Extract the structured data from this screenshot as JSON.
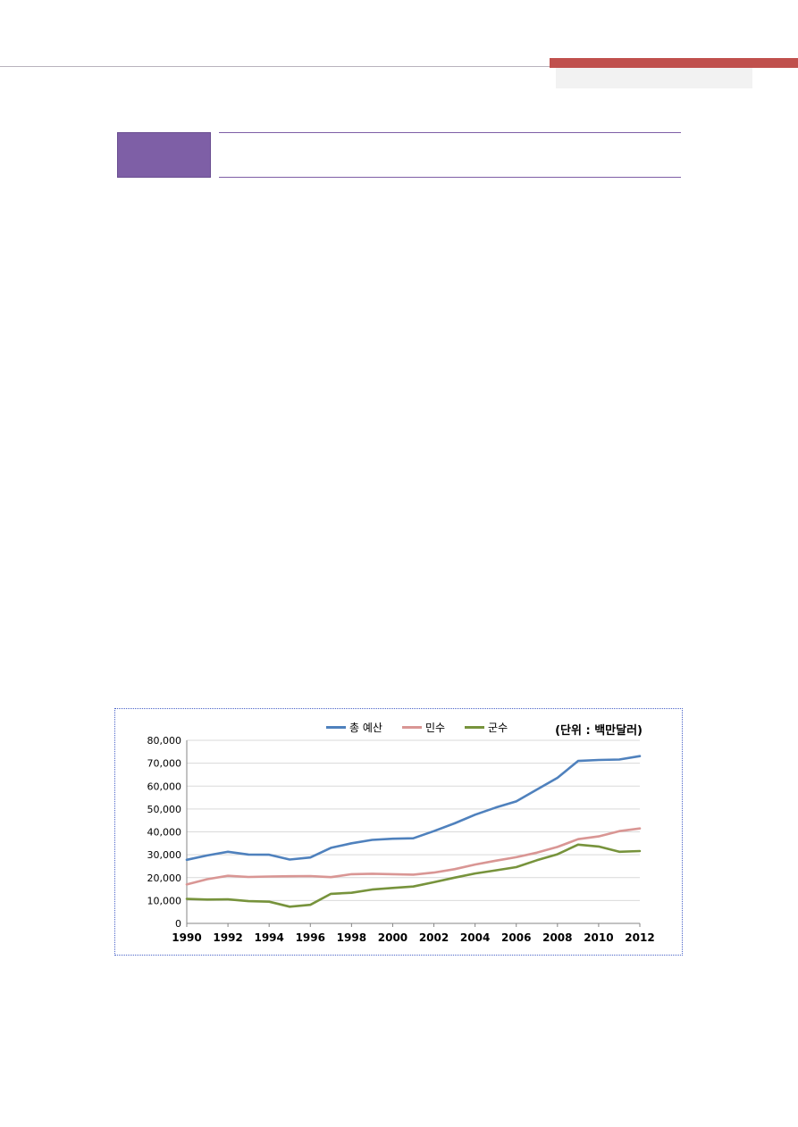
{
  "colors": {
    "header_accent": "#c0504d",
    "section_box": "#7e5fa6"
  },
  "chart_data": {
    "type": "line",
    "x": [
      1990,
      1991,
      1992,
      1993,
      1994,
      1995,
      1996,
      1997,
      1998,
      1999,
      2000,
      2001,
      2002,
      2003,
      2004,
      2005,
      2006,
      2007,
      2008,
      2009,
      2010,
      2011,
      2012
    ],
    "x_tick_labels": [
      "1990",
      "1992",
      "1994",
      "1996",
      "1998",
      "2000",
      "2002",
      "2004",
      "2006",
      "2008",
      "2010",
      "2012"
    ],
    "y_tick_labels": [
      "0",
      "10,000",
      "20,000",
      "30,000",
      "40,000",
      "50,000",
      "60,000",
      "70,000",
      "80,000"
    ],
    "ylim": [
      0,
      80000
    ],
    "unit_label": "(단위 : 백만달러)",
    "legend_position": "top",
    "grid": true,
    "series": [
      {
        "name": "총 예산",
        "color": "#4f81bd",
        "values": [
          27800,
          29700,
          31300,
          30100,
          30000,
          27900,
          28800,
          33000,
          35000,
          36500,
          37000,
          37200,
          40300,
          43700,
          47500,
          50600,
          53300,
          58500,
          63600,
          71000,
          71400,
          71600,
          73100
        ]
      },
      {
        "name": "민수",
        "color": "#d99694",
        "values": [
          17000,
          19300,
          20800,
          20300,
          20500,
          20600,
          20700,
          20200,
          21500,
          21700,
          21500,
          21300,
          22200,
          23700,
          25700,
          27400,
          28900,
          30900,
          33400,
          36800,
          38000,
          40300,
          41500
        ]
      },
      {
        "name": "군수",
        "color": "#77933c",
        "values": [
          10700,
          10400,
          10500,
          9700,
          9500,
          7300,
          8100,
          12900,
          13400,
          14800,
          15500,
          16100,
          18000,
          20000,
          21800,
          23200,
          24600,
          27600,
          30200,
          34400,
          33600,
          31300,
          31600
        ]
      }
    ]
  }
}
